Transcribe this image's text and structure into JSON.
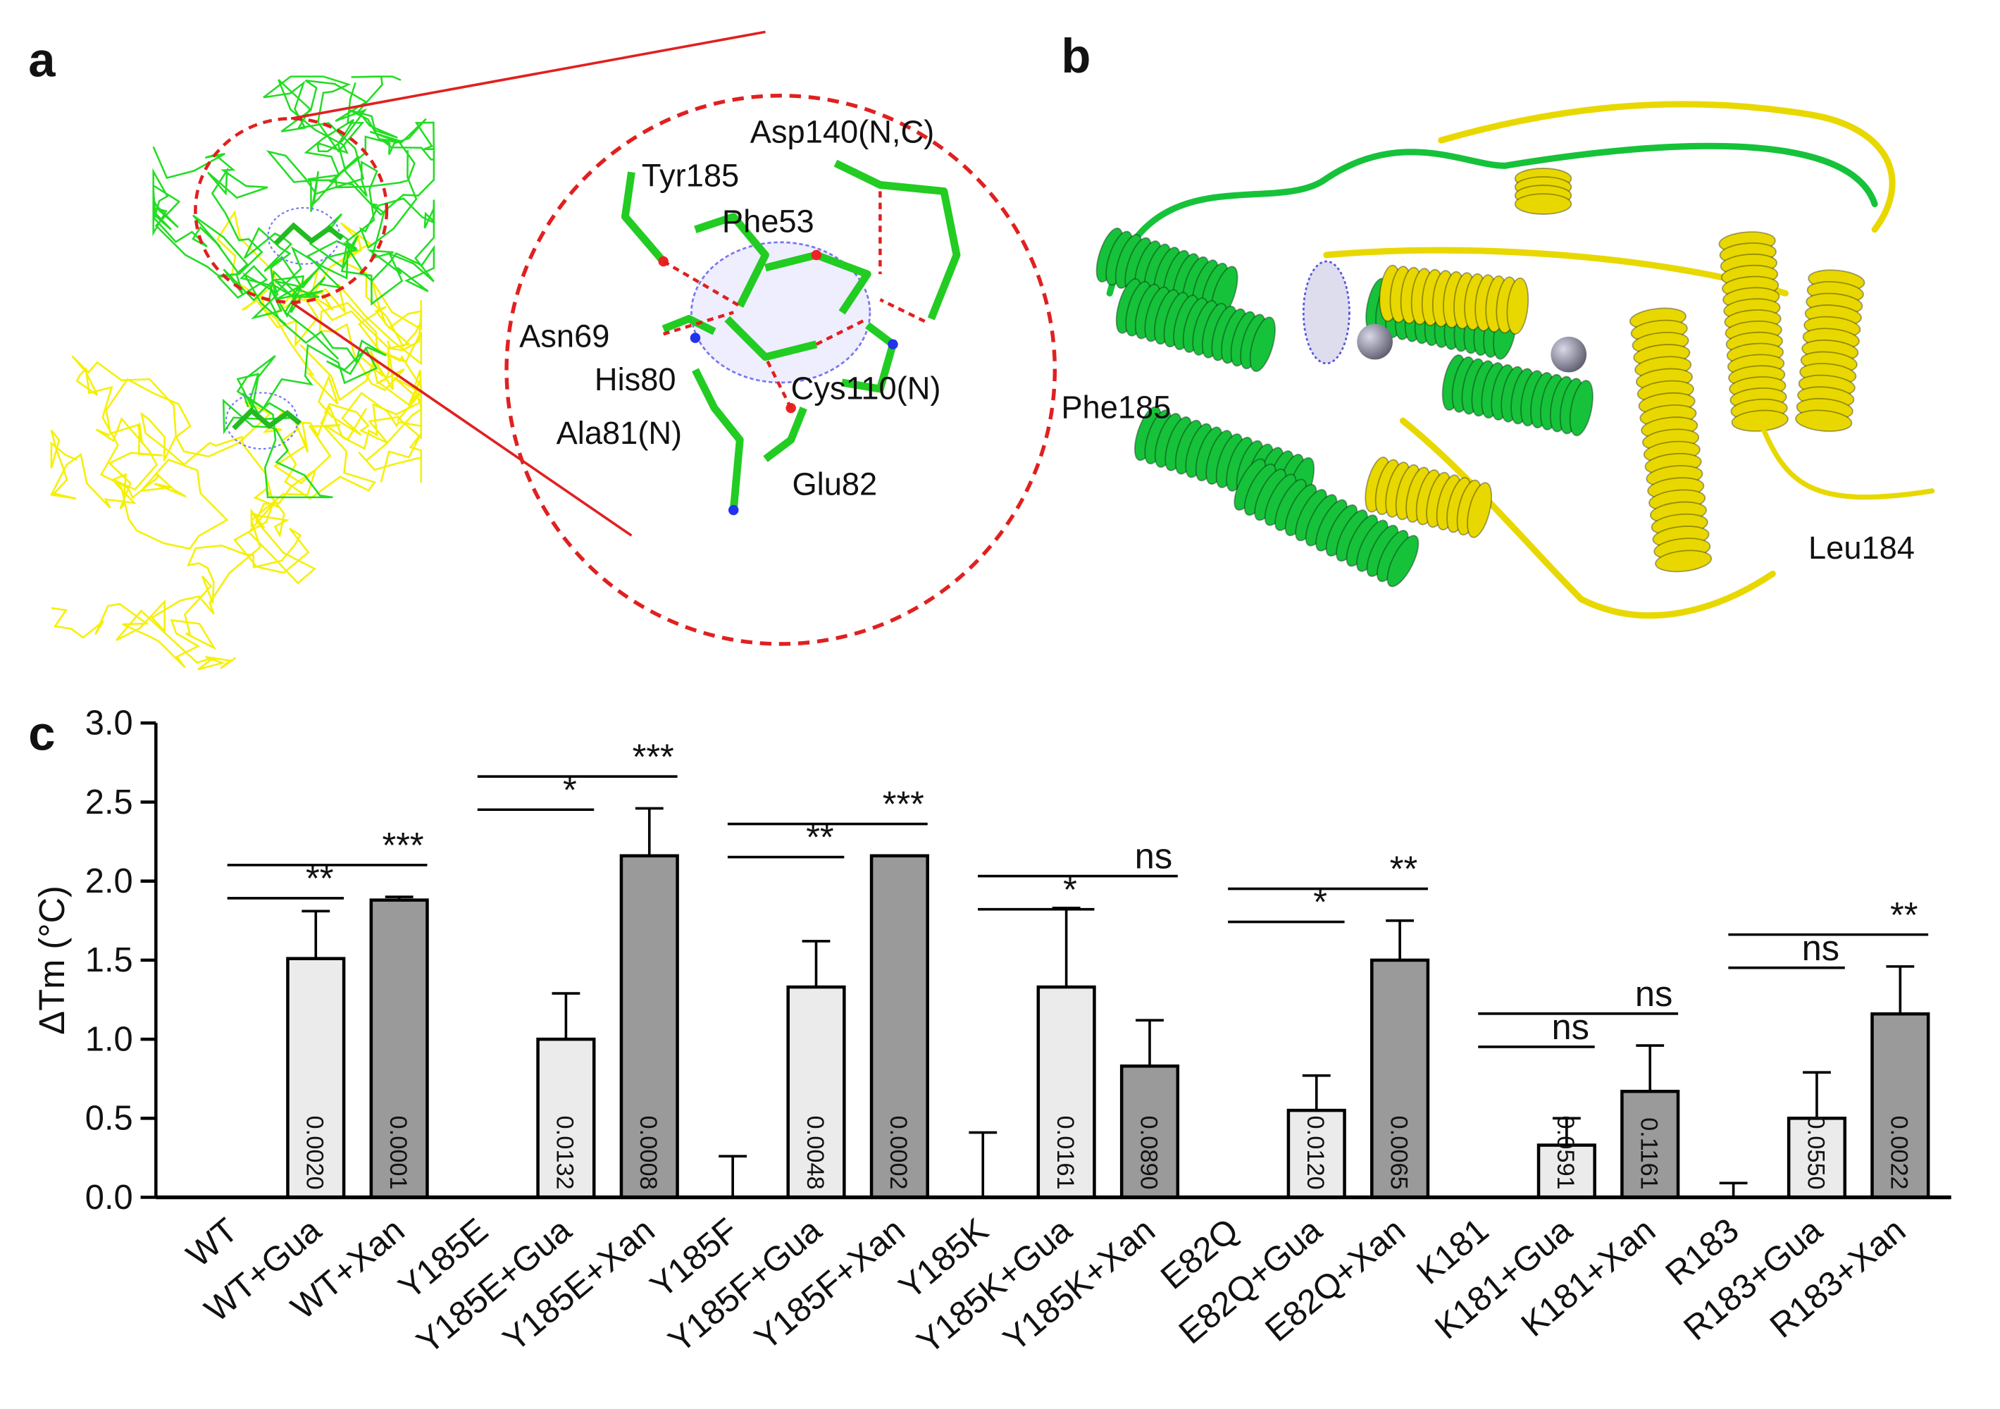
{
  "panels": {
    "a": {
      "label": "a",
      "residues": [
        "Asp140(N,C)",
        "Tyr185",
        "Phe53",
        "Asn69",
        "His80",
        "Cys110(N)",
        "Ala81(N)",
        "Glu82"
      ]
    },
    "b": {
      "label": "b",
      "residues": [
        "Phe185",
        "Leu184"
      ]
    }
  },
  "chart_data": {
    "type": "bar",
    "panel_label": "c",
    "y_label": "ΔTm (°C)",
    "categories": [
      "WT",
      "WT+Gua",
      "WT+Xan",
      "Y185E",
      "Y185E+Gua",
      "Y185E+Xan",
      "Y185F",
      "Y185F+Gua",
      "Y185F+Xan",
      "Y185K",
      "Y185K+Gua",
      "Y185K+Xan",
      "E82Q",
      "E82Q+Gua",
      "E82Q+Xan",
      "K181",
      "K181+Gua",
      "K181+Xan",
      "R183",
      "R183+Gua",
      "R183+Xan"
    ],
    "values": [
      0,
      1.51,
      1.88,
      0,
      1.0,
      2.16,
      0,
      1.33,
      2.16,
      0,
      1.33,
      0.83,
      0,
      0.55,
      1.5,
      0,
      0.33,
      0.67,
      0,
      0.5,
      1.16
    ],
    "errors": [
      0,
      0.3,
      0.02,
      0,
      0.29,
      0.3,
      0.26,
      0.29,
      0,
      0.41,
      0.5,
      0.29,
      0,
      0.22,
      0.25,
      0,
      0.17,
      0.29,
      0.09,
      0.29,
      0.3
    ],
    "colors": [
      "#ffffff",
      "#ebebeb",
      "#9a9a9a",
      "#ffffff",
      "#ebebeb",
      "#9a9a9a",
      "#ffffff",
      "#ebebeb",
      "#9a9a9a",
      "#ffffff",
      "#ebebeb",
      "#9a9a9a",
      "#ffffff",
      "#ebebeb",
      "#9a9a9a",
      "#ffffff",
      "#ebebeb",
      "#9a9a9a",
      "#ffffff",
      "#ebebeb",
      "#9a9a9a"
    ],
    "p_values": [
      null,
      "0.0020",
      "0.0001",
      null,
      "0.0132",
      "0.0008",
      null,
      "0.0048",
      "0.0002",
      null,
      "0.0161",
      "0.0890",
      null,
      "0.0120",
      "0.0065",
      null,
      "0.0591",
      "0.1161",
      null,
      "0.0550",
      "0.0022"
    ],
    "significance": [
      {
        "from": "WT",
        "to": "WT+Gua",
        "label": "**"
      },
      {
        "from": "WT",
        "to": "WT+Xan",
        "label": "***"
      },
      {
        "from": "Y185E",
        "to": "Y185E+Gua",
        "label": "*"
      },
      {
        "from": "Y185E",
        "to": "Y185E+Xan",
        "label": "***"
      },
      {
        "from": "Y185F",
        "to": "Y185F+Gua",
        "label": "**"
      },
      {
        "from": "Y185F",
        "to": "Y185F+Xan",
        "label": "***"
      },
      {
        "from": "Y185K",
        "to": "Y185K+Gua",
        "label": "*"
      },
      {
        "from": "Y185K",
        "to": "Y185K+Xan",
        "label": "ns"
      },
      {
        "from": "E82Q",
        "to": "E82Q+Gua",
        "label": "*"
      },
      {
        "from": "E82Q",
        "to": "E82Q+Xan",
        "label": "**"
      },
      {
        "from": "K181",
        "to": "K181+Gua",
        "label": "ns"
      },
      {
        "from": "K181",
        "to": "K181+Xan",
        "label": "ns"
      },
      {
        "from": "R183",
        "to": "R183+Gua",
        "label": "ns"
      },
      {
        "from": "R183",
        "to": "R183+Xan",
        "label": "**"
      }
    ],
    "ylim": [
      0,
      3
    ],
    "yticks": [
      {
        "value": 0,
        "label": "0.0"
      },
      0.5,
      {
        "value": 1,
        "label": "1.0"
      },
      1.5,
      {
        "value": 2,
        "label": "2.0"
      },
      2.5,
      {
        "value": 3,
        "label": "3.0"
      }
    ]
  }
}
